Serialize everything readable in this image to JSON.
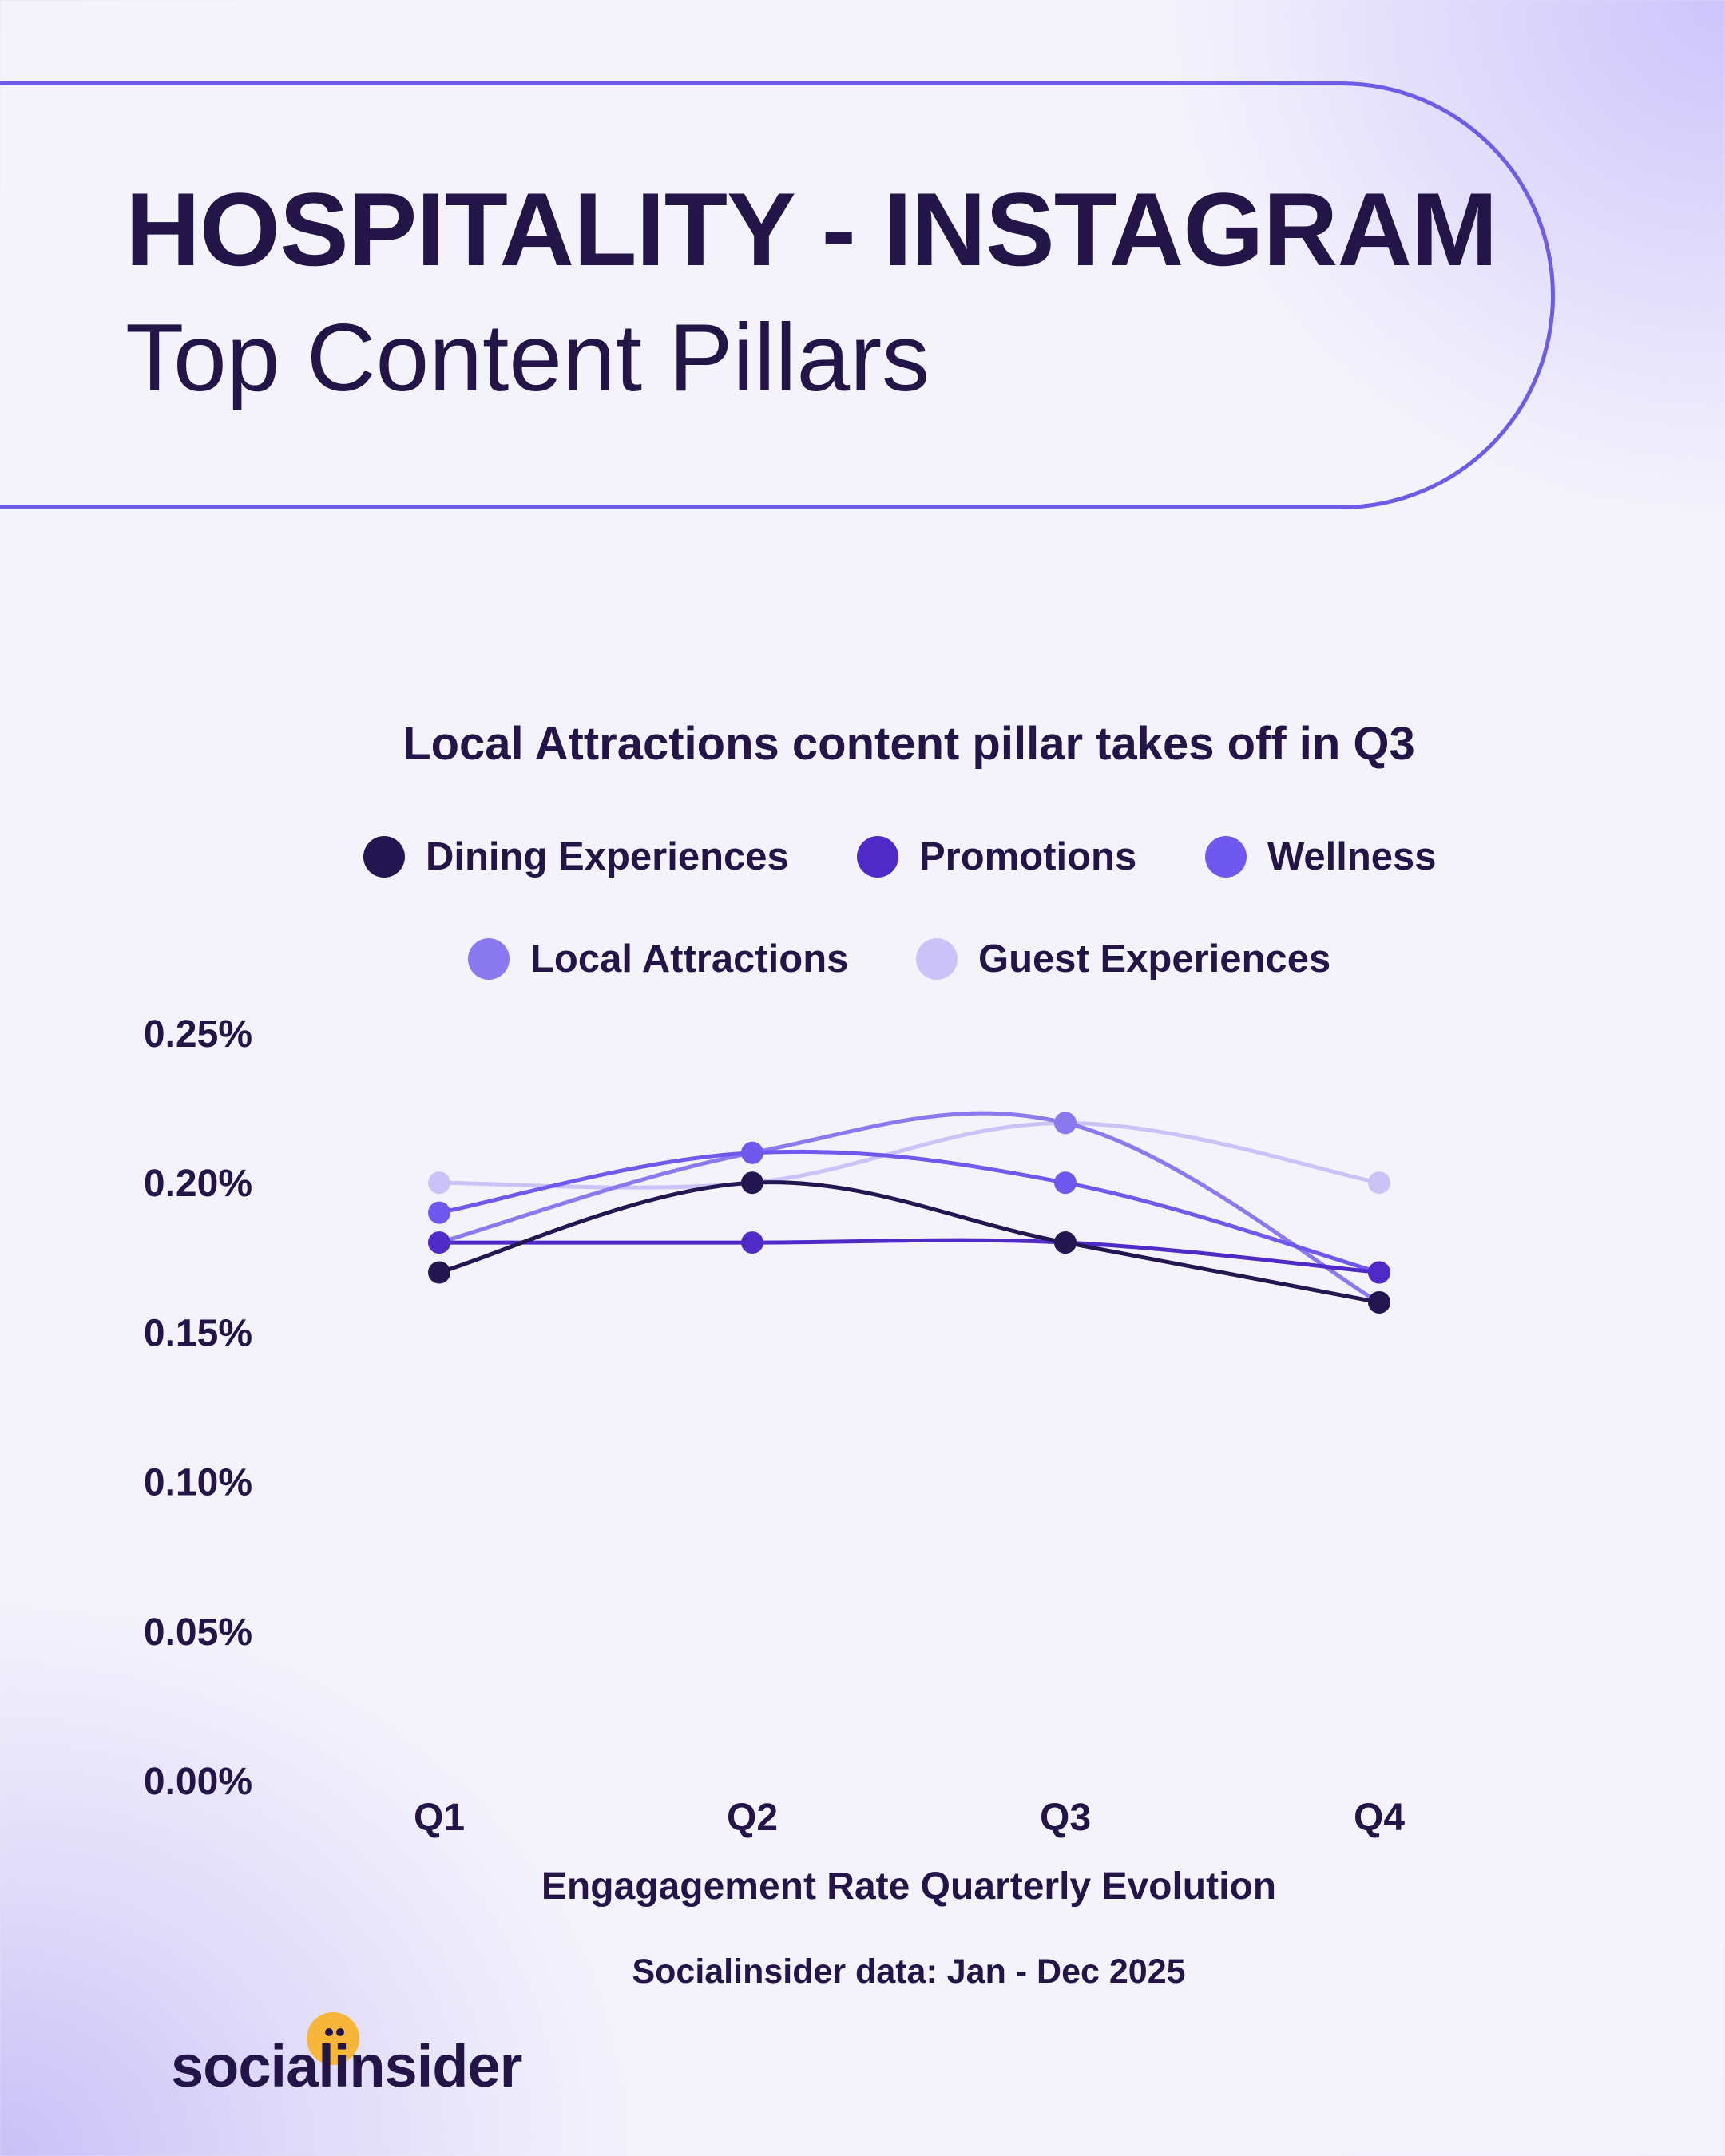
{
  "header": {
    "title": "HOSPITALITY - INSTAGRAM",
    "subtitle": "Top Content Pillars"
  },
  "colors": {
    "Dining Experiences": "#241650",
    "Promotions": "#4f2ac6",
    "Wellness": "#6e58ee",
    "Local Attractions": "#8a79ef",
    "Guest Experiences": "#cbc3f8"
  },
  "chart_data": {
    "type": "line",
    "title": "Local Attractions content pillar takes off in Q3",
    "xlabel": "Engagagement Rate Quarterly Evolution",
    "ylabel": "",
    "categories": [
      "Q1",
      "Q2",
      "Q3",
      "Q4"
    ],
    "ylim": [
      0,
      0.25
    ],
    "yticks": [
      "0.00%",
      "0.05%",
      "0.10%",
      "0.15%",
      "0.20%",
      "0.25%"
    ],
    "grid": false,
    "legend_position": "top",
    "series": [
      {
        "name": "Dining Experiences",
        "values": [
          0.17,
          0.2,
          0.18,
          0.16
        ]
      },
      {
        "name": "Promotions",
        "values": [
          0.18,
          0.18,
          0.18,
          0.17
        ]
      },
      {
        "name": "Wellness",
        "values": [
          0.19,
          0.21,
          0.2,
          0.17
        ]
      },
      {
        "name": "Local Attractions",
        "values": [
          0.18,
          0.21,
          0.22,
          0.16
        ]
      },
      {
        "name": "Guest Experiences",
        "values": [
          0.2,
          0.2,
          0.22,
          0.2
        ]
      }
    ]
  },
  "source": "Socialinsider data: Jan - Dec 2025",
  "logo": {
    "text": "socialinsider"
  }
}
